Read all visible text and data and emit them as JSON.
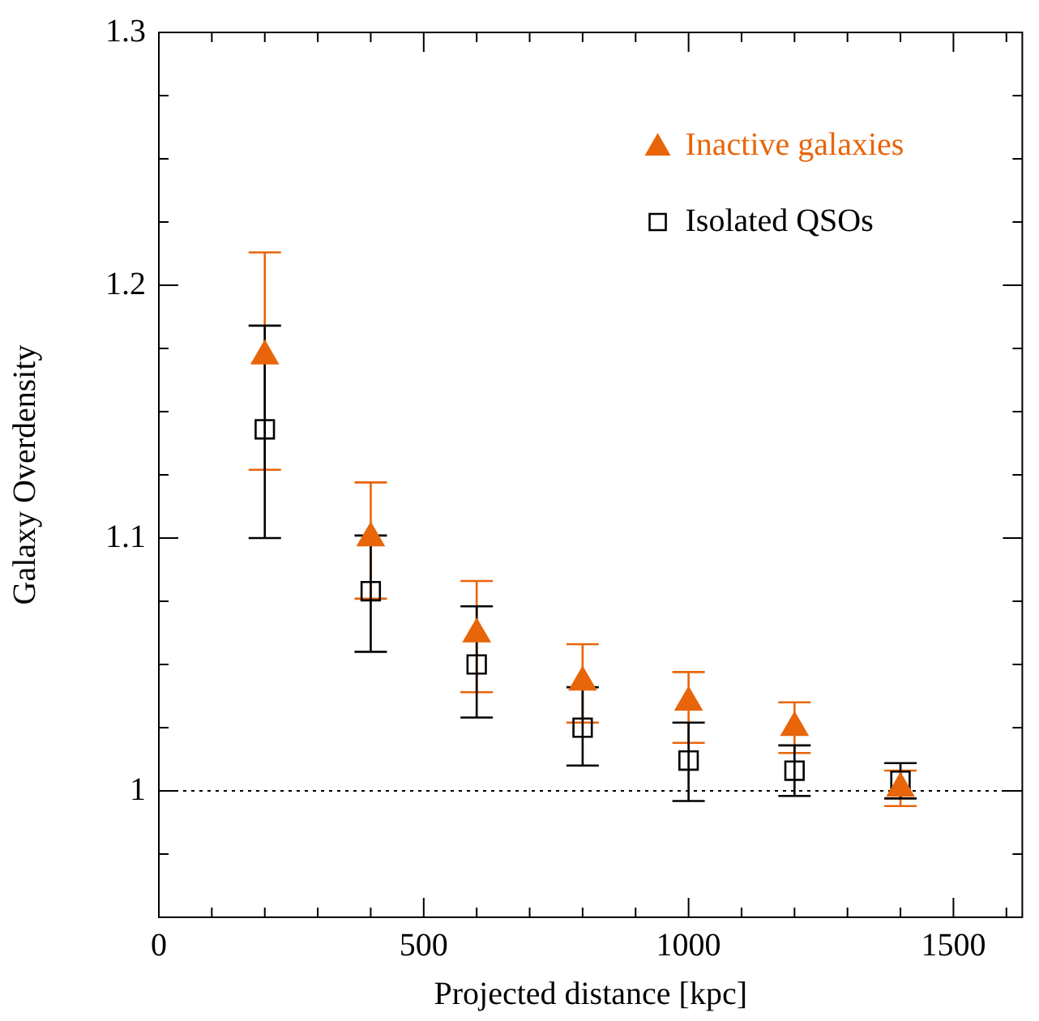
{
  "chart_data": {
    "type": "scatter",
    "xlabel": "Projected distance [kpc]",
    "ylabel": "Galaxy Overdensity",
    "xlim": [
      0,
      1630
    ],
    "ylim": [
      0.95,
      1.3
    ],
    "xticks": [
      0,
      {
        "value": 100,
        "label": null
      },
      {
        "value": 200,
        "label": null
      },
      {
        "value": 300,
        "label": null
      },
      {
        "value": 400,
        "label": null
      },
      500,
      {
        "value": 600,
        "label": null
      },
      {
        "value": 700,
        "label": null
      },
      {
        "value": 800,
        "label": null
      },
      {
        "value": 900,
        "label": null
      },
      1000,
      {
        "value": 1100,
        "label": null
      },
      {
        "value": 1200,
        "label": null
      },
      {
        "value": 1300,
        "label": null
      },
      {
        "value": 1400,
        "label": null
      },
      1500,
      {
        "value": 1600,
        "label": null
      }
    ],
    "yticks": [
      {
        "value": 0.95,
        "label": null
      },
      {
        "value": 0.975,
        "label": null
      },
      1,
      {
        "value": 1.025,
        "label": null
      },
      {
        "value": 1.05,
        "label": null
      },
      {
        "value": 1.075,
        "label": null
      },
      1.1,
      {
        "value": 1.125,
        "label": null
      },
      {
        "value": 1.15,
        "label": null
      },
      {
        "value": 1.175,
        "label": null
      },
      1.2,
      {
        "value": 1.225,
        "label": null
      },
      {
        "value": 1.25,
        "label": null
      },
      {
        "value": 1.275,
        "label": null
      },
      1.3
    ],
    "grid": false,
    "legend": "top right",
    "ref_lines": [
      {
        "axis": "y",
        "value": 1,
        "color": "#000000",
        "line_style": "dotted"
      }
    ],
    "series": [
      {
        "name": "Inactive galaxies",
        "color": "#e8650a",
        "marker": "triangle",
        "x": [
          200,
          400,
          600,
          800,
          1000,
          1200,
          1400
        ],
        "values": [
          1.172,
          1.1,
          1.062,
          1.043,
          1.035,
          1.025,
          1.001
        ],
        "errors": [
          [
            1.127,
            1.213
          ],
          [
            1.076,
            1.122
          ],
          [
            1.039,
            1.083
          ],
          [
            1.027,
            1.058
          ],
          [
            1.019,
            1.047
          ],
          [
            1.015,
            1.035
          ],
          [
            0.994,
            1.008
          ]
        ]
      },
      {
        "name": "Isolated QSOs",
        "color": "#000000",
        "marker": "square",
        "x": [
          200,
          400,
          600,
          800,
          1000,
          1200,
          1400
        ],
        "values": [
          1.143,
          1.079,
          1.05,
          1.025,
          1.012,
          1.008,
          1.004
        ],
        "errors": [
          [
            1.1,
            1.184
          ],
          [
            1.055,
            1.101
          ],
          [
            1.029,
            1.073
          ],
          [
            1.01,
            1.041
          ],
          [
            0.996,
            1.027
          ],
          [
            0.998,
            1.018
          ],
          [
            0.997,
            1.011
          ]
        ]
      }
    ]
  }
}
